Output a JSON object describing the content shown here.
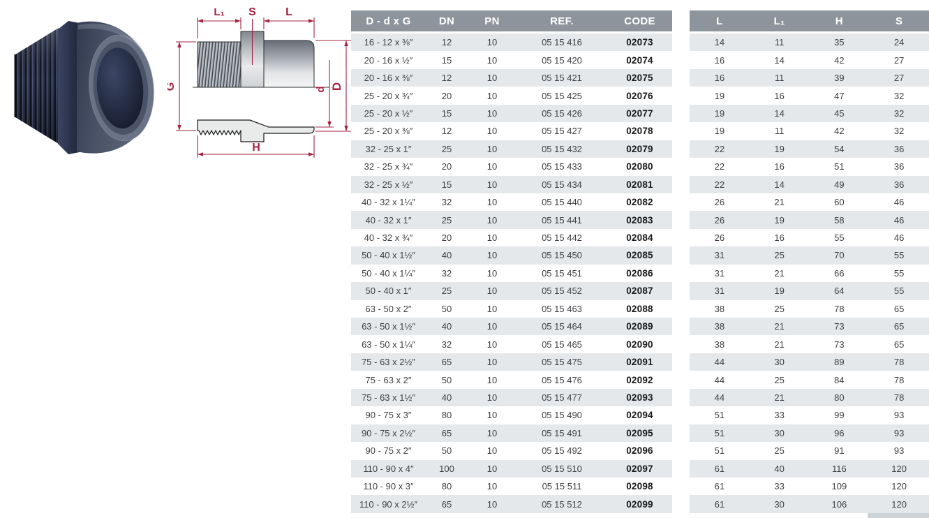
{
  "colors": {
    "table_header_bg": "#8d949b",
    "table_row_alt": "#e5e8ea",
    "dimension_line_red": "#a6213f",
    "fitting_navy": "#39425c"
  },
  "diagram": {
    "labels": {
      "l1": "L₁",
      "s": "S",
      "l": "L",
      "g": "G",
      "d_inner": "d",
      "d_outer": "D",
      "h": "H"
    }
  },
  "table1": {
    "headers": [
      "D - d x G",
      "DN",
      "PN",
      "REF.",
      "CODE"
    ],
    "rows": [
      [
        "16 - 12 x ⅜″",
        "12",
        "10",
        "05 15 416",
        "02073"
      ],
      [
        "20 - 16 x ½″",
        "15",
        "10",
        "05 15 420",
        "02074"
      ],
      [
        "20 - 16 x ⅜″",
        "12",
        "10",
        "05 15 421",
        "02075"
      ],
      [
        "25 - 20 x ¾″",
        "20",
        "10",
        "05 15 425",
        "02076"
      ],
      [
        "25 - 20 x ½″",
        "15",
        "10",
        "05 15 426",
        "02077"
      ],
      [
        "25 - 20 x ⅜″",
        "12",
        "10",
        "05 15 427",
        "02078"
      ],
      [
        "32 - 25 x 1″",
        "25",
        "10",
        "05 15 432",
        "02079"
      ],
      [
        "32 - 25 x ¾″",
        "20",
        "10",
        "05 15 433",
        "02080"
      ],
      [
        "32 - 25 x ½″",
        "15",
        "10",
        "05 15 434",
        "02081"
      ],
      [
        "40 - 32 x 1¼″",
        "32",
        "10",
        "05 15 440",
        "02082"
      ],
      [
        "40 - 32 x 1″",
        "25",
        "10",
        "05 15 441",
        "02083"
      ],
      [
        "40 - 32 x ¾″",
        "20",
        "10",
        "05 15 442",
        "02084"
      ],
      [
        "50 - 40 x 1½″",
        "40",
        "10",
        "05 15 450",
        "02085"
      ],
      [
        "50 - 40 x 1¼″",
        "32",
        "10",
        "05 15 451",
        "02086"
      ],
      [
        "50 - 40 x 1″",
        "25",
        "10",
        "05 15 452",
        "02087"
      ],
      [
        "63 - 50 x 2″",
        "50",
        "10",
        "05 15 463",
        "02088"
      ],
      [
        "63 - 50 x 1½″",
        "40",
        "10",
        "05 15 464",
        "02089"
      ],
      [
        "63 - 50 x 1¼″",
        "32",
        "10",
        "05 15 465",
        "02090"
      ],
      [
        "75 - 63 x 2½″",
        "65",
        "10",
        "05 15 475",
        "02091"
      ],
      [
        "75 - 63 x 2″",
        "50",
        "10",
        "05 15 476",
        "02092"
      ],
      [
        "75 - 63 x 1½″",
        "40",
        "10",
        "05 15 477",
        "02093"
      ],
      [
        "90 - 75 x 3″",
        "80",
        "10",
        "05 15 490",
        "02094"
      ],
      [
        "90 - 75 x 2½″",
        "65",
        "10",
        "05 15 491",
        "02095"
      ],
      [
        "90 - 75 x 2″",
        "50",
        "10",
        "05 15 492",
        "02096"
      ],
      [
        "110 - 90 x 4″",
        "100",
        "10",
        "05 15 510",
        "02097"
      ],
      [
        "110 - 90 x 3″",
        "80",
        "10",
        "05 15 511",
        "02098"
      ],
      [
        "110 - 90 x 2½″",
        "65",
        "10",
        "05 15 512",
        "02099"
      ]
    ]
  },
  "table2": {
    "headers": [
      "L",
      "L₁",
      "H",
      "S"
    ],
    "rows": [
      [
        "14",
        "11",
        "35",
        "24"
      ],
      [
        "16",
        "14",
        "42",
        "27"
      ],
      [
        "16",
        "11",
        "39",
        "27"
      ],
      [
        "19",
        "16",
        "47",
        "32"
      ],
      [
        "19",
        "14",
        "45",
        "32"
      ],
      [
        "19",
        "11",
        "42",
        "32"
      ],
      [
        "22",
        "19",
        "54",
        "36"
      ],
      [
        "22",
        "16",
        "51",
        "36"
      ],
      [
        "22",
        "14",
        "49",
        "36"
      ],
      [
        "26",
        "21",
        "60",
        "46"
      ],
      [
        "26",
        "19",
        "58",
        "46"
      ],
      [
        "26",
        "16",
        "55",
        "46"
      ],
      [
        "31",
        "25",
        "70",
        "55"
      ],
      [
        "31",
        "21",
        "66",
        "55"
      ],
      [
        "31",
        "19",
        "64",
        "55"
      ],
      [
        "38",
        "25",
        "78",
        "65"
      ],
      [
        "38",
        "21",
        "73",
        "65"
      ],
      [
        "38",
        "21",
        "73",
        "65"
      ],
      [
        "44",
        "30",
        "89",
        "78"
      ],
      [
        "44",
        "25",
        "84",
        "78"
      ],
      [
        "44",
        "21",
        "80",
        "78"
      ],
      [
        "51",
        "33",
        "99",
        "93"
      ],
      [
        "51",
        "30",
        "96",
        "93"
      ],
      [
        "51",
        "25",
        "91",
        "93"
      ],
      [
        "61",
        "40",
        "116",
        "120"
      ],
      [
        "61",
        "33",
        "109",
        "120"
      ],
      [
        "61",
        "30",
        "106",
        "120"
      ]
    ]
  }
}
